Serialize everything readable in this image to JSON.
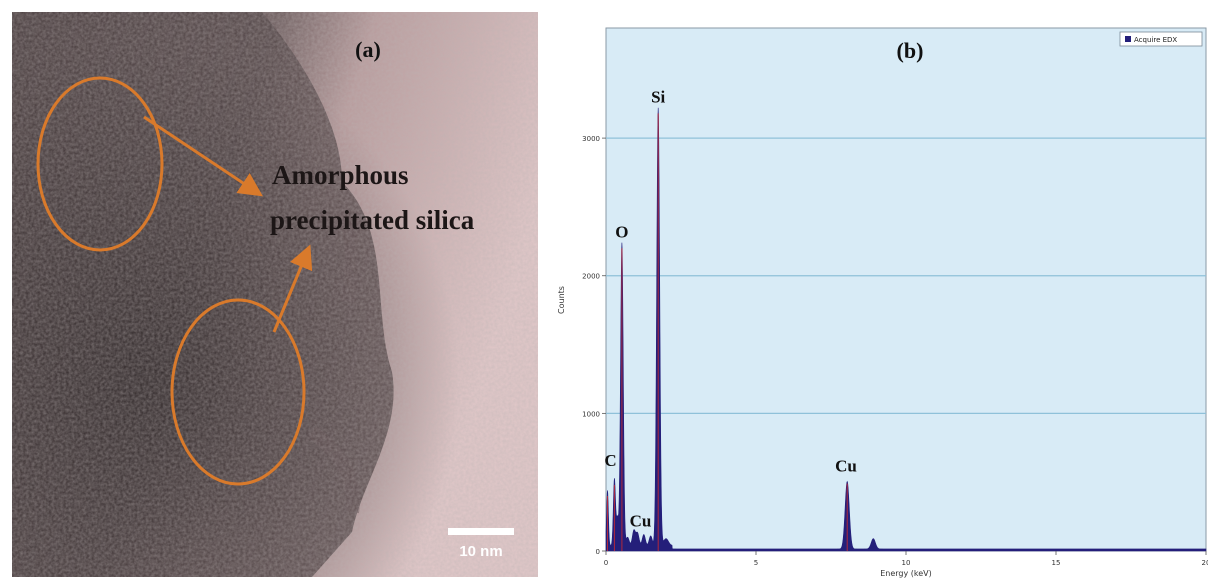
{
  "panel_a": {
    "label": "(a)",
    "annotation_line1": "Amorphous",
    "annotation_line2": "precipitated silica",
    "scale_bar_label": "10 nm",
    "circle_color": "#d97a2b"
  },
  "panel_b": {
    "label": "(b)",
    "plot_bg": "#d8ebf6",
    "fill_color": "#241f7a",
    "peak_line_color": "#b0283c"
  },
  "chart_data": {
    "type": "area",
    "xlabel": "Energy (keV)",
    "ylabel": "Counts",
    "legend": {
      "entries": [
        "Acquire EDX"
      ],
      "placement": "top-right"
    },
    "grid": "horizontal",
    "xlim": [
      0,
      20
    ],
    "ylim": [
      0,
      3800
    ],
    "xticks": [
      0,
      5,
      10,
      15,
      20
    ],
    "yticks": [
      0,
      1000,
      2000,
      3000
    ],
    "series": [
      {
        "name": "Acquire EDX",
        "peaks": [
          {
            "x": 0.05,
            "y": 400,
            "width": 0.03
          },
          {
            "x": 0.28,
            "y": 480,
            "width": 0.035
          },
          {
            "x": 0.38,
            "y": 200,
            "width": 0.04
          },
          {
            "x": 0.53,
            "y": 2200,
            "width": 0.045
          },
          {
            "x": 0.72,
            "y": 60,
            "width": 0.05
          },
          {
            "x": 0.93,
            "y": 110,
            "width": 0.05
          },
          {
            "x": 1.05,
            "y": 90,
            "width": 0.05
          },
          {
            "x": 1.26,
            "y": 80,
            "width": 0.05
          },
          {
            "x": 1.49,
            "y": 70,
            "width": 0.05
          },
          {
            "x": 1.74,
            "y": 3180,
            "width": 0.05
          },
          {
            "x": 2.0,
            "y": 50,
            "width": 0.08
          },
          {
            "x": 8.04,
            "y": 490,
            "width": 0.07
          },
          {
            "x": 8.91,
            "y": 75,
            "width": 0.07
          }
        ],
        "baseline": 25
      }
    ],
    "annotations": [
      {
        "text": "Si",
        "x": 1.74,
        "y": 3200
      },
      {
        "text": "O",
        "x": 0.53,
        "y": 2220
      },
      {
        "text": "C",
        "x": 0.15,
        "y": 560
      },
      {
        "text": "Cu",
        "x": 1.15,
        "y": 120
      },
      {
        "text": "Cu",
        "x": 8.0,
        "y": 520
      }
    ]
  }
}
